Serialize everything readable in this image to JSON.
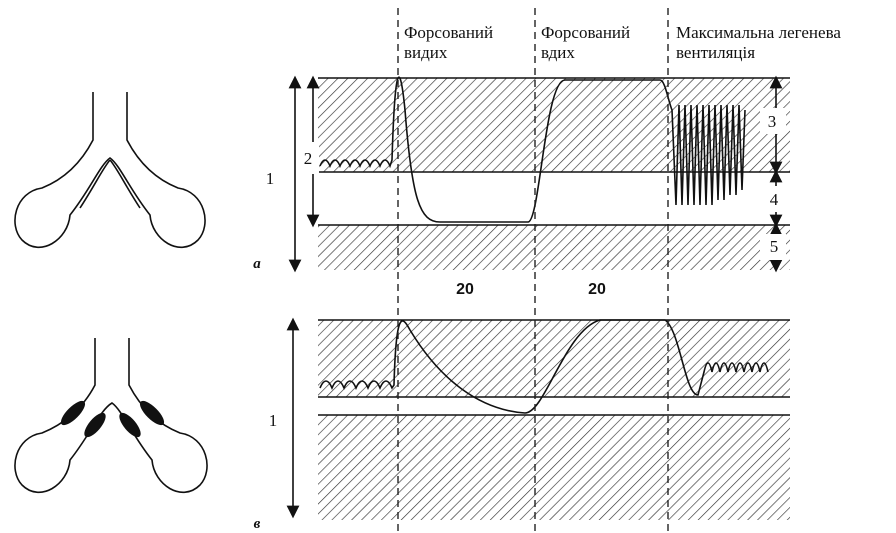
{
  "headers": [
    {
      "lines": [
        "Форсований",
        "видих"
      ]
    },
    {
      "lines": [
        "Форсований",
        "вдих"
      ]
    },
    {
      "lines": [
        "Максимальна легенева",
        "вентиляція"
      ]
    }
  ],
  "panel_a": {
    "label": "а",
    "volumes": [
      "1",
      "2",
      "3",
      "4",
      "5"
    ],
    "times": [
      "20",
      "20"
    ]
  },
  "panel_b": {
    "label": "в",
    "volumes": [
      "1"
    ]
  }
}
